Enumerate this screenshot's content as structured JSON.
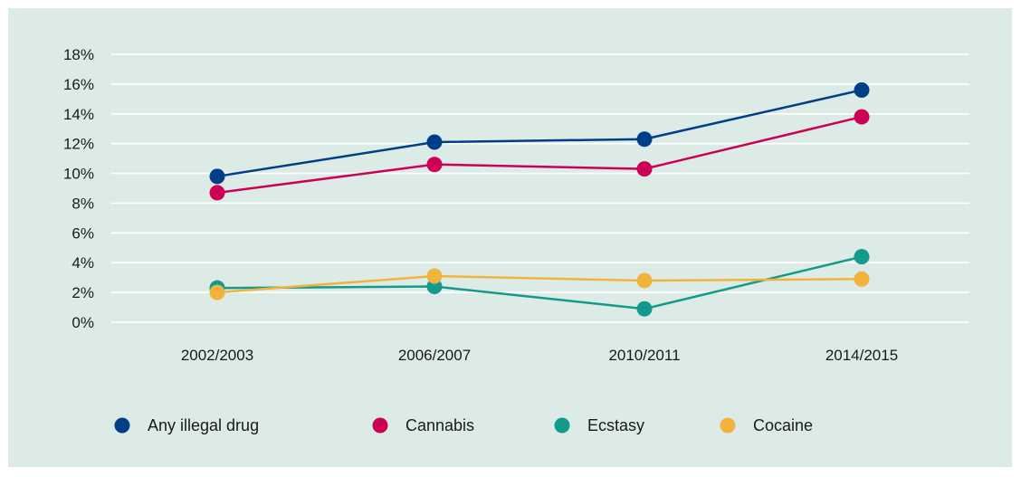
{
  "chart_data": {
    "type": "line",
    "title": "",
    "xlabel": "",
    "ylabel": "",
    "categories": [
      "2002/2003",
      "2006/2007",
      "2010/2011",
      "2014/2015"
    ],
    "ylim": [
      0,
      18
    ],
    "y_ticks": [
      0,
      2,
      4,
      6,
      8,
      10,
      12,
      14,
      16,
      18
    ],
    "y_tick_labels": [
      "0%",
      "2%",
      "4%",
      "6%",
      "8%",
      "10%",
      "12%",
      "14%",
      "16%",
      "18%"
    ],
    "grid": true,
    "legend_position": "bottom",
    "series": [
      {
        "name": "Any illegal drug",
        "color": "#003f87",
        "values": [
          9.8,
          12.1,
          12.3,
          15.6
        ]
      },
      {
        "name": "Cannabis",
        "color": "#cc0055",
        "values": [
          8.7,
          10.6,
          10.3,
          13.8
        ]
      },
      {
        "name": "Ecstasy",
        "color": "#129a8c",
        "values": [
          2.3,
          2.4,
          0.9,
          4.4
        ]
      },
      {
        "name": "Cocaine",
        "color": "#f2b33d",
        "values": [
          2.0,
          3.1,
          2.8,
          2.9
        ]
      }
    ]
  }
}
